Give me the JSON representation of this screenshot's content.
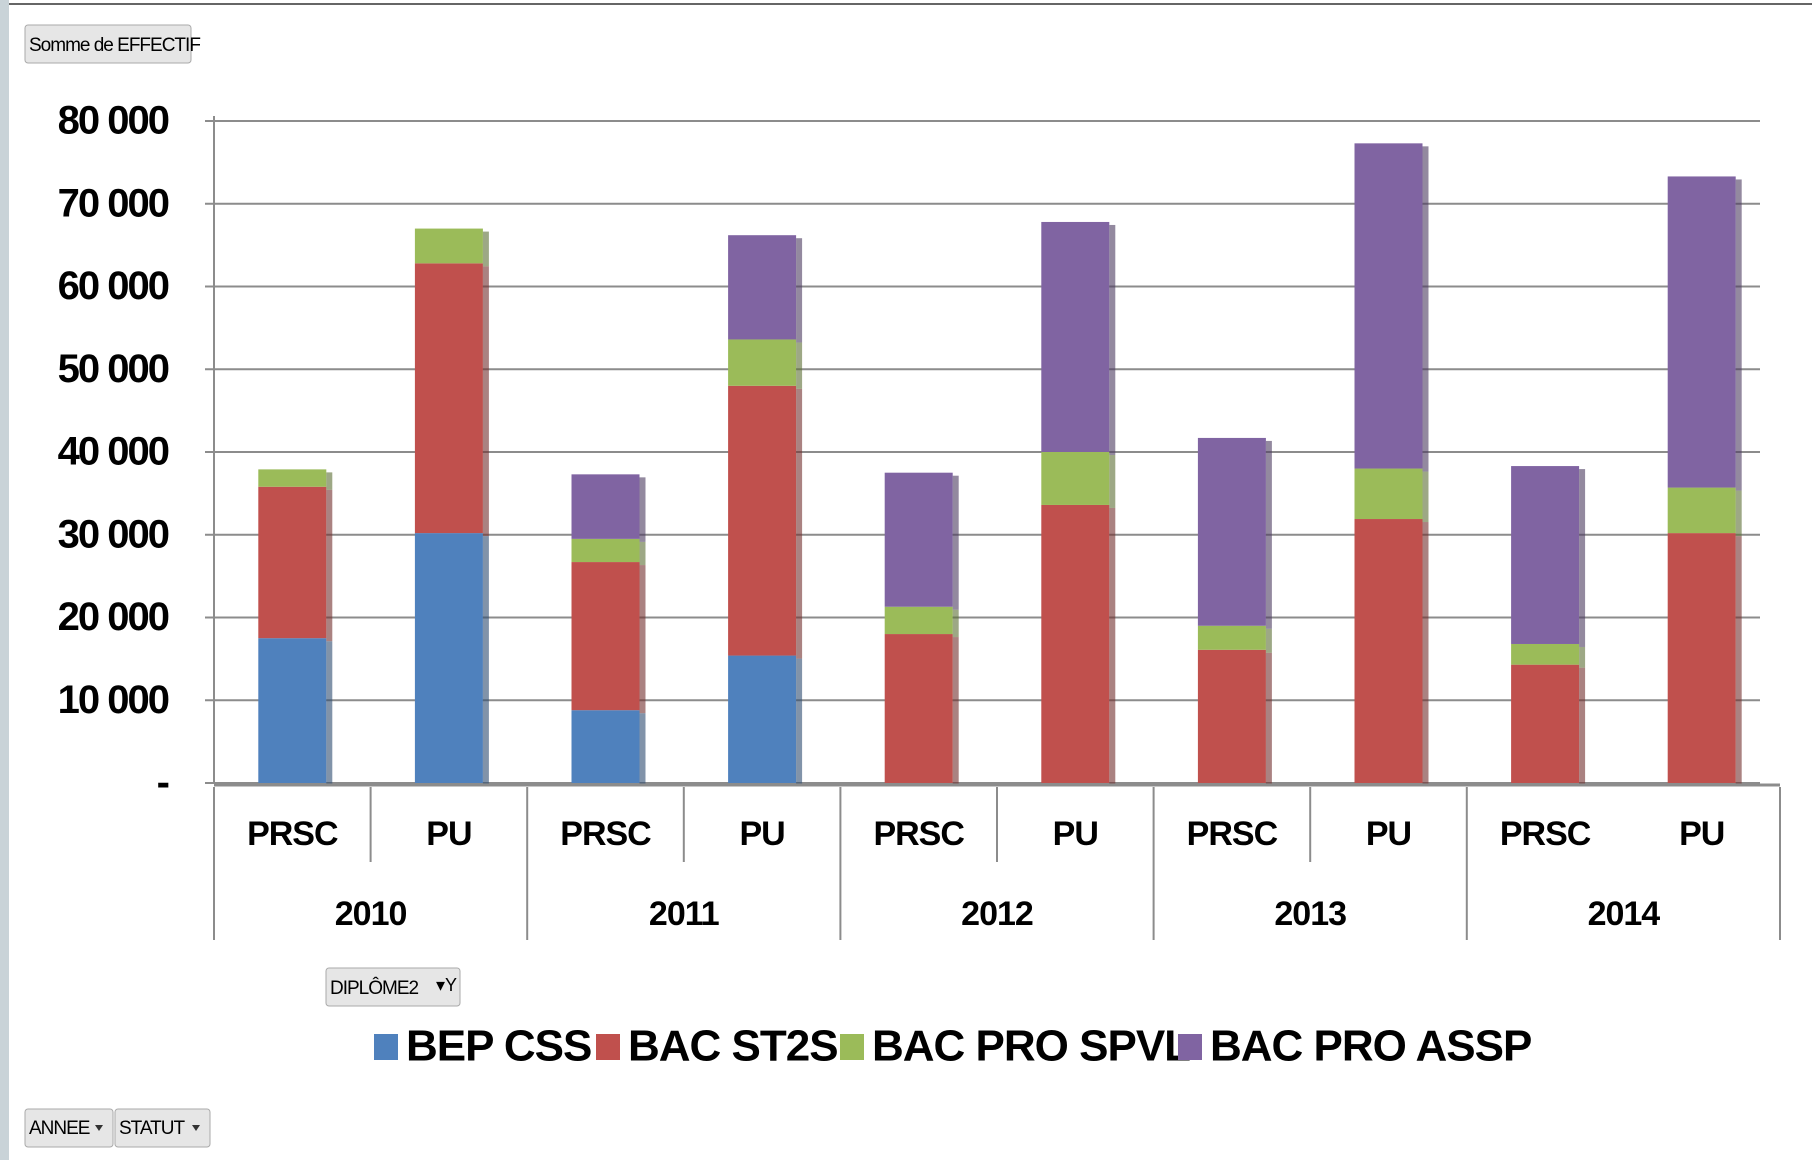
{
  "chart_data": {
    "type": "bar",
    "stacked": true,
    "value_field": "Somme de EFFECTIF",
    "legend_field": "DIPLÔME2",
    "axis_fields": [
      "ANNEE",
      "STATUT"
    ],
    "categories": [
      "PRSC",
      "PU",
      "PRSC",
      "PU",
      "PRSC",
      "PU",
      "PRSC",
      "PU",
      "PRSC",
      "PU"
    ],
    "groups": [
      "2010",
      "2011",
      "2012",
      "2013",
      "2014"
    ],
    "series": [
      {
        "name": "BEP CSS",
        "color": "#4f81bd",
        "values": [
          17500,
          30200,
          8800,
          15400,
          0,
          0,
          0,
          0,
          0,
          0
        ]
      },
      {
        "name": "BAC ST2S",
        "color": "#c0504d",
        "values": [
          18300,
          32600,
          17900,
          32600,
          18000,
          33600,
          16100,
          31900,
          14300,
          30200
        ]
      },
      {
        "name": "BAC PRO SPVL",
        "color": "#9bbb59",
        "values": [
          2100,
          4200,
          2800,
          5600,
          3300,
          6400,
          2900,
          6100,
          2500,
          5500
        ]
      },
      {
        "name": "BAC PRO ASSP",
        "color": "#8064a2",
        "values": [
          0,
          0,
          7800,
          12600,
          16200,
          27800,
          22700,
          39300,
          21500,
          37600
        ]
      }
    ],
    "ylim": [
      0,
      80000
    ],
    "yticks": [
      {
        "value": 0,
        "label": "-"
      },
      {
        "value": 10000,
        "label": "10 000"
      },
      {
        "value": 20000,
        "label": "20 000"
      },
      {
        "value": 30000,
        "label": "30 000"
      },
      {
        "value": 40000,
        "label": "40 000"
      },
      {
        "value": 50000,
        "label": "50 000"
      },
      {
        "value": 60000,
        "label": "60 000"
      },
      {
        "value": 70000,
        "label": "70 000"
      },
      {
        "value": 80000,
        "label": "80 000"
      }
    ],
    "grid": true,
    "legend": "bottom"
  }
}
